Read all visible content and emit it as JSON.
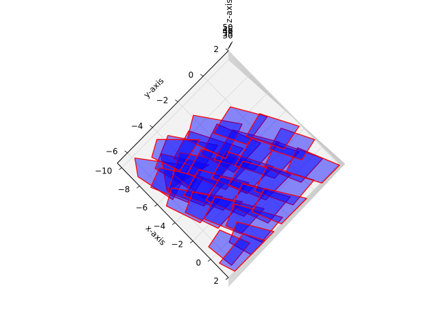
{
  "chart_data": {
    "type": "3d-polygon-collection",
    "view": "top-down (elev 90), rotated",
    "xlabel": "x-axis",
    "ylabel": "y-axis",
    "zlabel": "z-axis",
    "x_ticks": [
      "−10",
      "−8",
      "−6",
      "−4",
      "−2",
      "0",
      "2"
    ],
    "y_ticks": [
      "−6",
      "−4",
      "−2",
      "0",
      "2"
    ],
    "z_ticks": [
      "30",
      "35",
      "40",
      "45",
      "50"
    ],
    "xlim": [
      -10.5,
      2
    ],
    "ylim": [
      -6.8,
      2
    ],
    "zlim": [
      28,
      52
    ],
    "grid": true,
    "face_color": "#0000ff",
    "face_alpha": 0.45,
    "edge_color": "#ff0000",
    "polygons": [
      [
        [
          -9.8,
          -5.9
        ],
        [
          -6.3,
          -4.0
        ],
        [
          -5.4,
          -6.0
        ],
        [
          -8.6,
          -6.5
        ]
      ],
      [
        [
          -9.2,
          -3.7
        ],
        [
          -5.9,
          -2.1
        ],
        [
          -5.0,
          -4.9
        ],
        [
          -8.1,
          -5.5
        ]
      ],
      [
        [
          -8.6,
          -4.7
        ],
        [
          -5.3,
          -3.2
        ],
        [
          -6.2,
          -5.9
        ]
      ],
      [
        [
          -8.3,
          -2.7
        ],
        [
          -4.3,
          -1.2
        ],
        [
          -4.0,
          -3.2
        ],
        [
          -7.6,
          -4.4
        ]
      ],
      [
        [
          -7.9,
          -5.3
        ],
        [
          -4.9,
          -3.9
        ],
        [
          -4.4,
          -5.5
        ],
        [
          -7.3,
          -6.4
        ]
      ],
      [
        [
          -7.6,
          -3.9
        ],
        [
          -4.2,
          -2.2
        ],
        [
          -3.7,
          -4.7
        ],
        [
          -6.8,
          -5.0
        ]
      ],
      [
        [
          -7.1,
          -1.3
        ],
        [
          -3.6,
          -0.3
        ],
        [
          -3.5,
          -2.5
        ],
        [
          -6.3,
          -3.1
        ]
      ],
      [
        [
          -6.9,
          -4.8
        ],
        [
          -3.4,
          -3.3
        ],
        [
          -3.3,
          -5.0
        ],
        [
          -6.1,
          -5.9
        ]
      ],
      [
        [
          -6.6,
          -2.9
        ],
        [
          -3.1,
          -1.4
        ],
        [
          -3.0,
          -3.5
        ],
        [
          -6.0,
          -4.4
        ]
      ],
      [
        [
          -6.1,
          -5.6
        ],
        [
          -2.8,
          -3.9
        ],
        [
          -2.6,
          -5.8
        ],
        [
          -5.4,
          -6.5
        ]
      ],
      [
        [
          -5.9,
          -0.9
        ],
        [
          -2.6,
          0.5
        ],
        [
          -2.5,
          -1.6
        ],
        [
          -5.3,
          -2.8
        ]
      ],
      [
        [
          -5.6,
          -3.8
        ],
        [
          -2.1,
          -2.3
        ],
        [
          -2.0,
          -4.4
        ],
        [
          -5.0,
          -5.4
        ]
      ],
      [
        [
          -5.1,
          -2.0
        ],
        [
          -1.6,
          -0.7
        ],
        [
          -1.6,
          -2.8
        ],
        [
          -4.4,
          -3.6
        ]
      ],
      [
        [
          -4.7,
          -4.9
        ],
        [
          -1.4,
          -3.3
        ],
        [
          -1.3,
          -5.3
        ],
        [
          -4.0,
          -6.0
        ]
      ],
      [
        [
          -4.4,
          -0.4
        ],
        [
          -1.0,
          0.9
        ],
        [
          -0.9,
          -1.1
        ],
        [
          -3.8,
          -2.2
        ]
      ],
      [
        [
          -4.0,
          -3.2
        ],
        [
          -0.6,
          -1.8
        ],
        [
          -0.5,
          -3.8
        ],
        [
          -3.5,
          -4.7
        ]
      ],
      [
        [
          -3.6,
          -1.7
        ],
        [
          -0.2,
          -0.3
        ],
        [
          -0.2,
          -2.3
        ],
        [
          -3.1,
          -3.2
        ]
      ],
      [
        [
          -3.2,
          -4.2
        ],
        [
          0.2,
          -2.7
        ],
        [
          0.3,
          -4.6
        ],
        [
          -2.6,
          -5.5
        ]
      ],
      [
        [
          -2.8,
          0.4
        ],
        [
          0.7,
          1.6
        ],
        [
          0.8,
          -0.2
        ],
        [
          -2.1,
          -1.1
        ]
      ],
      [
        [
          -2.4,
          -2.6
        ],
        [
          1.0,
          -1.2
        ],
        [
          1.2,
          -3.1
        ],
        [
          -1.7,
          -3.9
        ]
      ],
      [
        [
          -2.0,
          -0.9
        ],
        [
          1.4,
          0.4
        ],
        [
          1.6,
          -1.4
        ],
        [
          -1.3,
          -2.4
        ]
      ],
      [
        [
          -1.7,
          -3.7
        ],
        [
          1.7,
          -2.3
        ],
        [
          1.9,
          -4.1
        ],
        [
          -1.0,
          -4.9
        ]
      ],
      [
        [
          -1.3,
          1.0
        ],
        [
          2.0,
          2.0
        ],
        [
          2.0,
          0.6
        ],
        [
          -0.6,
          -0.4
        ]
      ],
      [
        [
          -0.9,
          -1.9
        ],
        [
          2.0,
          -0.6
        ],
        [
          2.0,
          -2.6
        ],
        [
          -0.3,
          -3.3
        ]
      ],
      [
        [
          -0.6,
          -4.3
        ],
        [
          2.0,
          -3.2
        ],
        [
          2.0,
          -5.0
        ],
        [
          0.1,
          -5.4
        ]
      ],
      [
        [
          -8.9,
          -1.9
        ],
        [
          -5.7,
          -0.3
        ],
        [
          -4.7,
          -2.3
        ],
        [
          -7.9,
          -3.1
        ]
      ],
      [
        [
          -9.6,
          -4.3
        ],
        [
          -7.2,
          -2.6
        ],
        [
          -6.6,
          -4.6
        ],
        [
          -8.9,
          -5.2
        ]
      ],
      [
        [
          -7.3,
          -0.1
        ],
        [
          -4.7,
          1.0
        ],
        [
          -4.3,
          -0.9
        ],
        [
          -6.8,
          -1.8
        ]
      ],
      [
        [
          -3.3,
          1.1
        ],
        [
          -0.8,
          2.0
        ],
        [
          -0.4,
          0.7
        ],
        [
          -2.8,
          -0.2
        ]
      ],
      [
        [
          -5.3,
          0.8
        ],
        [
          -2.4,
          1.9
        ],
        [
          -2.0,
          0.4
        ],
        [
          -4.8,
          -0.6
        ]
      ],
      [
        [
          -1.1,
          -5.3
        ],
        [
          1.3,
          -4.6
        ],
        [
          1.5,
          -6.2
        ],
        [
          -0.8,
          -6.4
        ]
      ],
      [
        [
          0.4,
          -4.5
        ],
        [
          2.0,
          -3.9
        ],
        [
          2.0,
          -6.3
        ],
        [
          0.7,
          -6.6
        ]
      ]
    ]
  }
}
